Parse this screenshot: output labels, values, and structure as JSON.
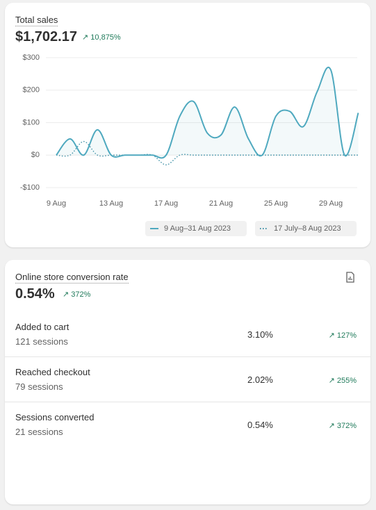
{
  "chart_data": {
    "type": "line",
    "title": "Total sales",
    "total": "$1,702.17",
    "change": "10,875%",
    "categories": [
      "9 Aug",
      null,
      null,
      null,
      "13 Aug",
      null,
      null,
      null,
      "17 Aug",
      null,
      null,
      null,
      "21 Aug",
      null,
      null,
      null,
      "25 Aug",
      null,
      null,
      null,
      "29 Aug",
      null,
      null
    ],
    "series": [
      {
        "name": "9 Aug–31 Aug 2023",
        "color": "#4fa9bf",
        "style": "solid",
        "values": [
          0,
          50,
          0,
          78,
          0,
          0,
          0,
          0,
          0,
          120,
          165,
          68,
          62,
          148,
          50,
          0,
          120,
          135,
          88,
          195,
          262,
          0,
          130
        ]
      },
      {
        "name": "17 July–8 Aug 2023",
        "color": "#3b8ea5",
        "style": "dotted",
        "values": [
          0,
          0,
          42,
          0,
          0,
          0,
          0,
          0,
          -30,
          0,
          0,
          0,
          0,
          0,
          0,
          0,
          0,
          0,
          0,
          0,
          0,
          0,
          0
        ]
      }
    ],
    "ylim": [
      -100,
      300
    ],
    "yticks": [
      {
        "value": -100,
        "label": "-$100"
      },
      {
        "value": 0,
        "label": "$0"
      },
      {
        "value": 100,
        "label": "$100"
      },
      {
        "value": 200,
        "label": "$200"
      },
      {
        "value": 300,
        "label": "$300"
      }
    ],
    "grid": true
  },
  "conversion": {
    "title": "Online store conversion rate",
    "value": "0.54%",
    "change": "372%",
    "rows": [
      {
        "label": "Added to cart",
        "sessions": "121 sessions",
        "rate": "3.10%",
        "change": "127%"
      },
      {
        "label": "Reached checkout",
        "sessions": "79 sessions",
        "rate": "2.02%",
        "change": "255%"
      },
      {
        "label": "Sessions converted",
        "sessions": "21 sessions",
        "rate": "0.54%",
        "change": "372%"
      }
    ]
  }
}
